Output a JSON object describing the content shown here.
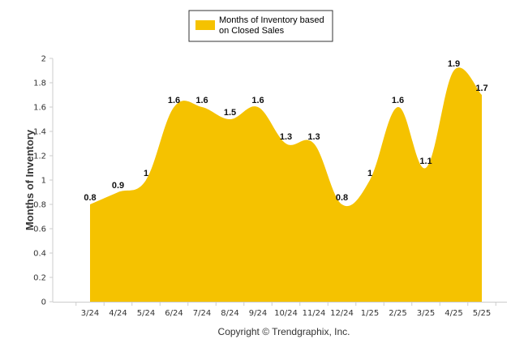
{
  "chart_data": {
    "type": "area",
    "ylabel": "Months of Inventory",
    "xlabel": "",
    "ylim": [
      0,
      2
    ],
    "y_ticks": [
      "0",
      "0.2",
      "0.4",
      "0.6",
      "0.8",
      "1",
      "1.2",
      "1.4",
      "1.6",
      "1.8",
      "2"
    ],
    "categories": [
      "3/24",
      "4/24",
      "5/24",
      "6/24",
      "7/24",
      "8/24",
      "9/24",
      "10/24",
      "11/24",
      "12/24",
      "1/25",
      "2/25",
      "3/25",
      "4/25",
      "5/25"
    ],
    "series": [
      {
        "name": "Months of Inventory based on Closed Sales",
        "values": [
          0.8,
          0.9,
          1,
          1.6,
          1.6,
          1.5,
          1.6,
          1.3,
          1.3,
          0.8,
          1,
          1.6,
          1.1,
          1.9,
          1.7
        ],
        "labels": [
          "0.8",
          "0.9",
          "1",
          "1.6",
          "1.6",
          "1.5",
          "1.6",
          "1.3",
          "1.3",
          "0.8",
          "1",
          "1.6",
          "1.1",
          "1.9",
          "1.7"
        ],
        "color": "#f5c200"
      }
    ],
    "grid": false,
    "legend_position": "top-center"
  },
  "legend": {
    "line1": "Months of Inventory based",
    "line2": "on Closed Sales"
  },
  "credit": "Copyright © Trendgraphix, Inc.",
  "colors": {
    "fill": "#f5c200",
    "axis": "#cccccc",
    "legend_border": "#333333"
  }
}
